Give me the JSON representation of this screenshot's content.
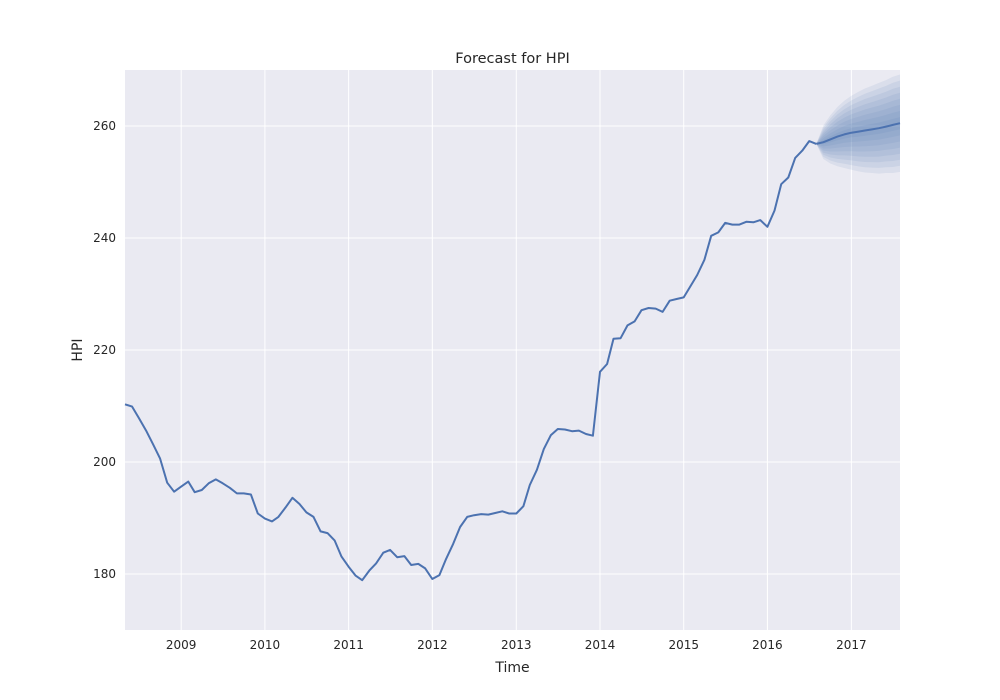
{
  "chart_data": {
    "type": "line",
    "title": "Forecast for HPI",
    "xlabel": "Time",
    "ylabel": "HPI",
    "xlim": [
      "2008-05-01",
      "2017-08-01"
    ],
    "ylim": [
      170,
      270
    ],
    "x_ticks": [
      "2009",
      "2010",
      "2011",
      "2012",
      "2013",
      "2014",
      "2015",
      "2016",
      "2017"
    ],
    "y_ticks": [
      180,
      200,
      220,
      240,
      260
    ],
    "grid": true,
    "legend": "none",
    "colors": {
      "line": "#4c72b0",
      "background": "#eaeaf2",
      "grid": "#ffffff"
    },
    "series": [
      {
        "x": [
          "2008-05",
          "2008-06",
          "2008-07",
          "2008-08",
          "2008-09",
          "2008-10",
          "2008-11",
          "2008-12",
          "2009-01",
          "2009-02",
          "2009-03",
          "2009-04",
          "2009-05",
          "2009-06",
          "2009-07",
          "2009-08",
          "2009-09",
          "2009-10",
          "2009-11",
          "2009-12",
          "2010-01",
          "2010-02",
          "2010-03",
          "2010-04",
          "2010-05",
          "2010-06",
          "2010-07",
          "2010-08",
          "2010-09",
          "2010-10",
          "2010-11",
          "2010-12",
          "2011-01",
          "2011-02",
          "2011-03",
          "2011-04",
          "2011-05",
          "2011-06",
          "2011-07",
          "2011-08",
          "2011-09",
          "2011-10",
          "2011-11",
          "2011-12",
          "2012-01",
          "2012-02",
          "2012-03",
          "2012-04",
          "2012-05",
          "2012-06",
          "2012-07",
          "2012-08",
          "2012-09",
          "2012-10",
          "2012-11",
          "2012-12",
          "2013-01",
          "2013-02",
          "2013-03",
          "2013-04",
          "2013-05",
          "2013-06",
          "2013-07",
          "2013-08",
          "2013-09",
          "2013-10",
          "2013-11",
          "2013-12",
          "2014-01",
          "2014-02",
          "2014-03",
          "2014-04",
          "2014-05",
          "2014-06",
          "2014-07",
          "2014-08",
          "2014-09",
          "2014-10",
          "2014-11",
          "2014-12",
          "2015-01",
          "2015-02",
          "2015-03",
          "2015-04",
          "2015-05",
          "2015-06",
          "2015-07",
          "2015-08",
          "2015-09",
          "2015-10",
          "2015-11",
          "2015-12",
          "2016-01",
          "2016-02",
          "2016-03",
          "2016-04",
          "2016-05",
          "2016-06",
          "2016-07",
          "2016-08"
        ],
        "values": [
          210.3,
          209.9,
          207.8,
          205.6,
          203.1,
          200.6,
          196.3,
          194.7,
          195.6,
          196.5,
          194.6,
          195.0,
          196.2,
          196.9,
          196.2,
          195.4,
          194.4,
          194.4,
          194.2,
          190.8,
          189.9,
          189.4,
          190.2,
          191.9,
          193.6,
          192.5,
          191.0,
          190.2,
          187.6,
          187.3,
          186.0,
          183.1,
          181.3,
          179.7,
          178.9,
          180.6,
          181.9,
          183.8,
          184.3,
          183.0,
          183.2,
          181.6,
          181.8,
          181.0,
          179.1,
          179.8,
          182.7,
          185.4,
          188.4,
          190.2,
          190.5,
          190.7,
          190.6,
          190.9,
          191.2,
          190.8,
          190.8,
          192.1,
          195.9,
          198.6,
          202.3,
          204.8,
          205.9,
          205.8,
          205.5,
          205.6,
          205.0,
          204.7,
          216.1,
          217.5,
          222.0,
          222.1,
          224.4,
          225.1,
          227.1,
          227.5,
          227.4,
          226.8,
          228.8,
          229.1,
          229.4,
          231.5,
          233.4,
          236.1,
          240.4,
          241.0,
          242.7,
          242.4,
          242.4,
          242.9,
          242.8,
          243.2,
          242.0,
          244.9,
          249.6,
          250.8,
          254.3,
          255.6,
          257.3,
          256.8
        ]
      },
      {
        "x": [
          "2016-08",
          "2016-09",
          "2016-10",
          "2016-11",
          "2016-12",
          "2017-01",
          "2017-02",
          "2017-03",
          "2017-04",
          "2017-05",
          "2017-06",
          "2017-07",
          "2017-08"
        ],
        "values": [
          256.8,
          257.1,
          257.6,
          258.1,
          258.5,
          258.8,
          259.0,
          259.2,
          259.4,
          259.6,
          259.9,
          260.2,
          260.5
        ],
        "interval_half_widths": [
          0.0,
          3.0,
          4.3,
          5.3,
          6.0,
          6.6,
          7.1,
          7.5,
          7.8,
          8.1,
          8.3,
          8.6,
          8.7
        ]
      }
    ]
  }
}
